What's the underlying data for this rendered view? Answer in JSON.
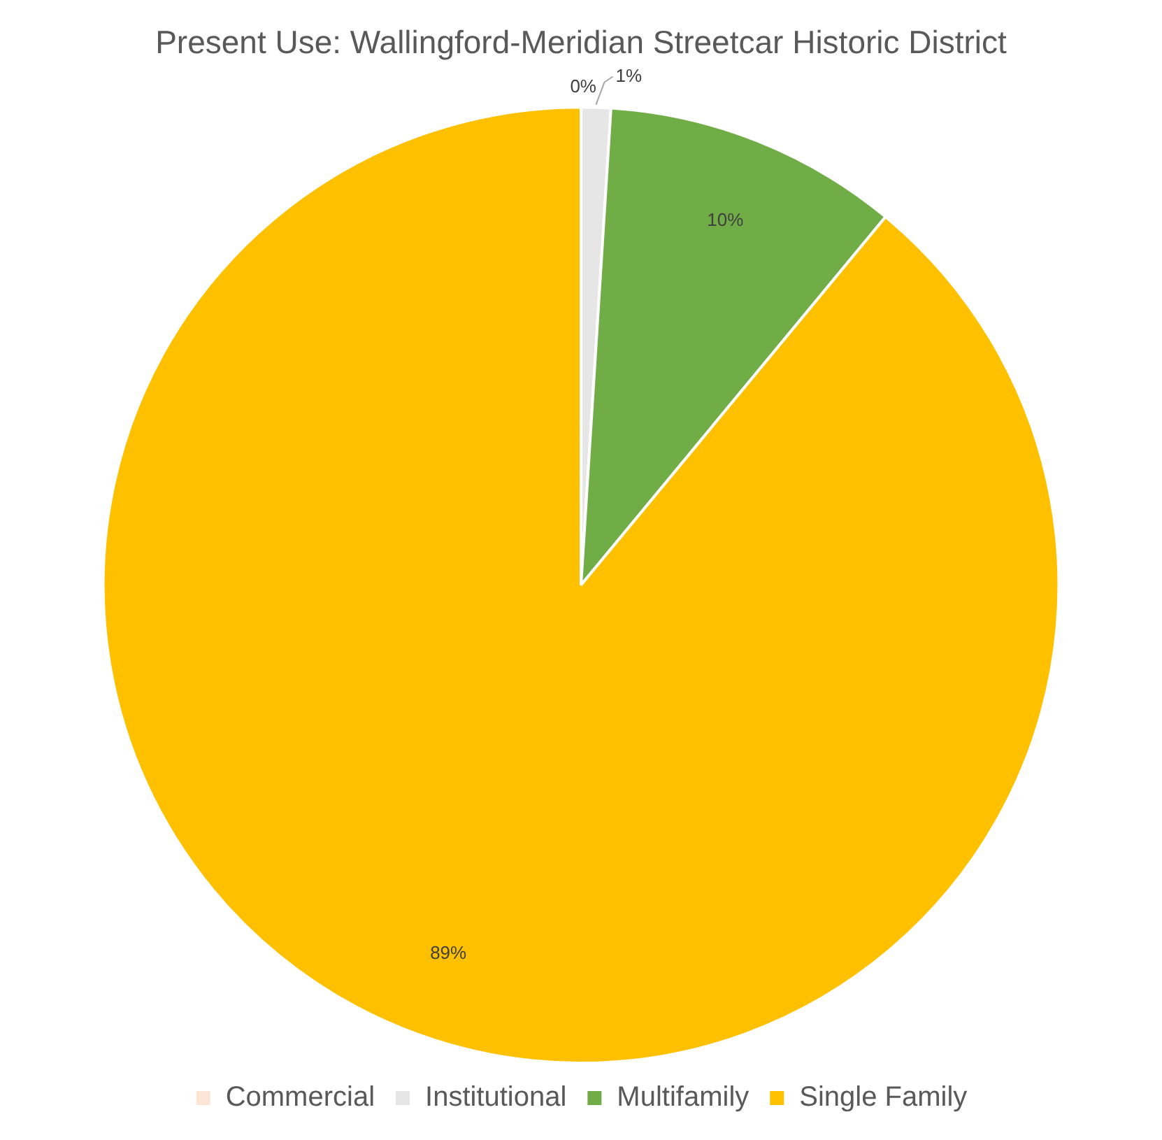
{
  "chart_data": {
    "type": "pie",
    "title": "Present Use: Wallingford-Meridian Streetcar Historic District",
    "categories": [
      "Commercial",
      "Institutional",
      "Multifamily",
      "Single Family"
    ],
    "values": [
      0,
      1,
      10,
      89
    ],
    "colors": [
      "#fbe5d6",
      "#e7e6e6",
      "#70ad47",
      "#ffc000"
    ],
    "value_labels": [
      "0%",
      "1%",
      "10%",
      "89%"
    ],
    "legend": "bottom"
  }
}
